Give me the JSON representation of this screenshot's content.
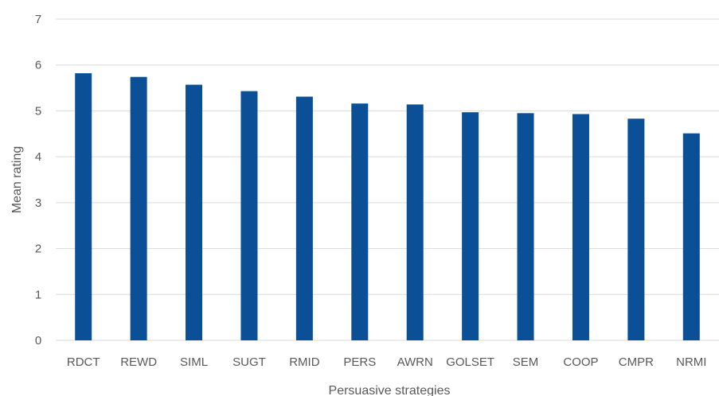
{
  "chart_data": {
    "type": "bar",
    "xlabel": "Persuasive strategies",
    "ylabel": "Mean rating",
    "ylim": [
      0,
      7
    ],
    "yticks": [
      "0",
      "1",
      "2",
      "3",
      "4",
      "5",
      "6",
      "7"
    ],
    "grid": true,
    "legend": "none",
    "bar_color": "#0b4f96",
    "grid_color": "#d9d9d9",
    "categories": [
      "RDCT",
      "REWD",
      "SIML",
      "SUGT",
      "RMID",
      "PERS",
      "AWRN",
      "GOLSET",
      "SEM",
      "COOP",
      "CMPR",
      "NRMI"
    ],
    "values": [
      5.82,
      5.74,
      5.57,
      5.43,
      5.31,
      5.16,
      5.14,
      4.97,
      4.95,
      4.93,
      4.83,
      4.51
    ]
  }
}
